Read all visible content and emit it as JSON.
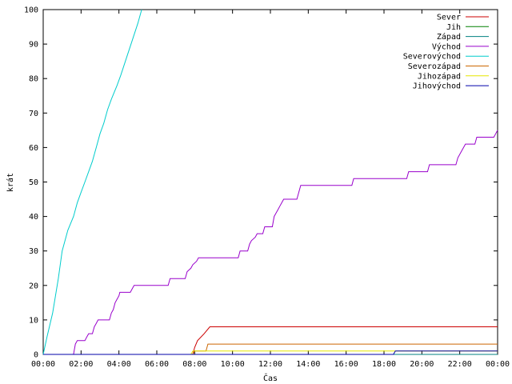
{
  "chart_data": {
    "type": "line",
    "title": "",
    "xlabel": "Čas",
    "ylabel": "krát",
    "xlim": [
      0,
      24
    ],
    "ylim": [
      0,
      100
    ],
    "grid": false,
    "legend_position": "top-right",
    "x_ticks": [
      {
        "value": 0,
        "label": "00:00"
      },
      {
        "value": 2,
        "label": "02:00"
      },
      {
        "value": 4,
        "label": "04:00"
      },
      {
        "value": 6,
        "label": "06:00"
      },
      {
        "value": 8,
        "label": "08:00"
      },
      {
        "value": 10,
        "label": "10:00"
      },
      {
        "value": 12,
        "label": "12:00"
      },
      {
        "value": 14,
        "label": "14:00"
      },
      {
        "value": 16,
        "label": "16:00"
      },
      {
        "value": 18,
        "label": "18:00"
      },
      {
        "value": 20,
        "label": "20:00"
      },
      {
        "value": 22,
        "label": "22:00"
      },
      {
        "value": 24,
        "label": "00:00"
      }
    ],
    "y_ticks": [
      {
        "value": 0,
        "label": "0"
      },
      {
        "value": 10,
        "label": "10"
      },
      {
        "value": 20,
        "label": "20"
      },
      {
        "value": 30,
        "label": "30"
      },
      {
        "value": 40,
        "label": "40"
      },
      {
        "value": 50,
        "label": "50"
      },
      {
        "value": 60,
        "label": "60"
      },
      {
        "value": 70,
        "label": "70"
      },
      {
        "value": 80,
        "label": "80"
      },
      {
        "value": 90,
        "label": "90"
      },
      {
        "value": 100,
        "label": "100"
      }
    ],
    "series": [
      {
        "name": "Sever",
        "color": "#cc0000",
        "points": [
          [
            0,
            0
          ],
          [
            7.9,
            0
          ],
          [
            8.0,
            2
          ],
          [
            8.15,
            4
          ],
          [
            8.5,
            6
          ],
          [
            8.8,
            8
          ],
          [
            24,
            8
          ]
        ]
      },
      {
        "name": "Jih",
        "color": "#008000",
        "points": [
          [
            0,
            0
          ],
          [
            24,
            0
          ]
        ]
      },
      {
        "name": "Západ",
        "color": "#008080",
        "points": [
          [
            0,
            0
          ],
          [
            24,
            0
          ]
        ]
      },
      {
        "name": "Východ",
        "color": "#9900cc",
        "points": [
          [
            0,
            0
          ],
          [
            1.6,
            0
          ],
          [
            1.7,
            3
          ],
          [
            1.8,
            4
          ],
          [
            2.2,
            4
          ],
          [
            2.3,
            5
          ],
          [
            2.4,
            6
          ],
          [
            2.6,
            6
          ],
          [
            2.7,
            8
          ],
          [
            2.8,
            9
          ],
          [
            2.9,
            10
          ],
          [
            3.5,
            10
          ],
          [
            3.6,
            12
          ],
          [
            3.7,
            13
          ],
          [
            3.8,
            15
          ],
          [
            3.9,
            16
          ],
          [
            4.0,
            17
          ],
          [
            4.05,
            18
          ],
          [
            4.6,
            18
          ],
          [
            4.7,
            19
          ],
          [
            4.8,
            20
          ],
          [
            6.6,
            20
          ],
          [
            6.7,
            22
          ],
          [
            7.5,
            22
          ],
          [
            7.6,
            24
          ],
          [
            7.8,
            25
          ],
          [
            7.9,
            26
          ],
          [
            8.1,
            27
          ],
          [
            8.2,
            28
          ],
          [
            10.3,
            28
          ],
          [
            10.4,
            30
          ],
          [
            10.8,
            30
          ],
          [
            10.9,
            32
          ],
          [
            11.0,
            33
          ],
          [
            11.2,
            34
          ],
          [
            11.3,
            35
          ],
          [
            11.6,
            35
          ],
          [
            11.7,
            37
          ],
          [
            12.1,
            37
          ],
          [
            12.2,
            40
          ],
          [
            12.3,
            41
          ],
          [
            12.4,
            42
          ],
          [
            12.5,
            43
          ],
          [
            12.6,
            44
          ],
          [
            12.7,
            45
          ],
          [
            13.4,
            45
          ],
          [
            13.5,
            47
          ],
          [
            13.6,
            49
          ],
          [
            16.3,
            49
          ],
          [
            16.4,
            51
          ],
          [
            19.2,
            51
          ],
          [
            19.3,
            53
          ],
          [
            20.3,
            53
          ],
          [
            20.4,
            55
          ],
          [
            21.8,
            55
          ],
          [
            21.9,
            57
          ],
          [
            22.1,
            59
          ],
          [
            22.3,
            61
          ],
          [
            22.8,
            61
          ],
          [
            22.9,
            63
          ],
          [
            23.8,
            63
          ],
          [
            23.9,
            64
          ],
          [
            24,
            65
          ]
        ]
      },
      {
        "name": "Severovýchod",
        "color": "#00cccc",
        "points": [
          [
            0,
            0
          ],
          [
            0.2,
            5
          ],
          [
            0.5,
            12
          ],
          [
            0.8,
            22
          ],
          [
            1.0,
            30
          ],
          [
            1.3,
            36
          ],
          [
            1.6,
            40
          ],
          [
            1.8,
            44
          ],
          [
            2.0,
            47
          ],
          [
            2.2,
            50
          ],
          [
            2.4,
            53
          ],
          [
            2.6,
            56
          ],
          [
            2.8,
            60
          ],
          [
            3.0,
            64
          ],
          [
            3.2,
            67
          ],
          [
            3.4,
            71
          ],
          [
            3.6,
            74
          ],
          [
            3.9,
            78
          ],
          [
            4.1,
            81
          ],
          [
            4.4,
            86
          ],
          [
            4.7,
            91
          ],
          [
            5.0,
            96
          ],
          [
            5.2,
            100
          ]
        ]
      },
      {
        "name": "Severozápad",
        "color": "#cc6600",
        "points": [
          [
            0,
            0
          ],
          [
            7.9,
            0
          ],
          [
            8.0,
            1
          ],
          [
            8.6,
            1
          ],
          [
            8.7,
            3
          ],
          [
            24,
            3
          ]
        ]
      },
      {
        "name": "Jihozápad",
        "color": "#e6e600",
        "points": [
          [
            0,
            0
          ],
          [
            7.8,
            0
          ],
          [
            7.9,
            1
          ],
          [
            24,
            1
          ]
        ]
      },
      {
        "name": "Jihovýchod",
        "color": "#0000aa",
        "points": [
          [
            0,
            0
          ],
          [
            18.5,
            0
          ],
          [
            18.6,
            1
          ],
          [
            24,
            1
          ]
        ]
      }
    ]
  }
}
